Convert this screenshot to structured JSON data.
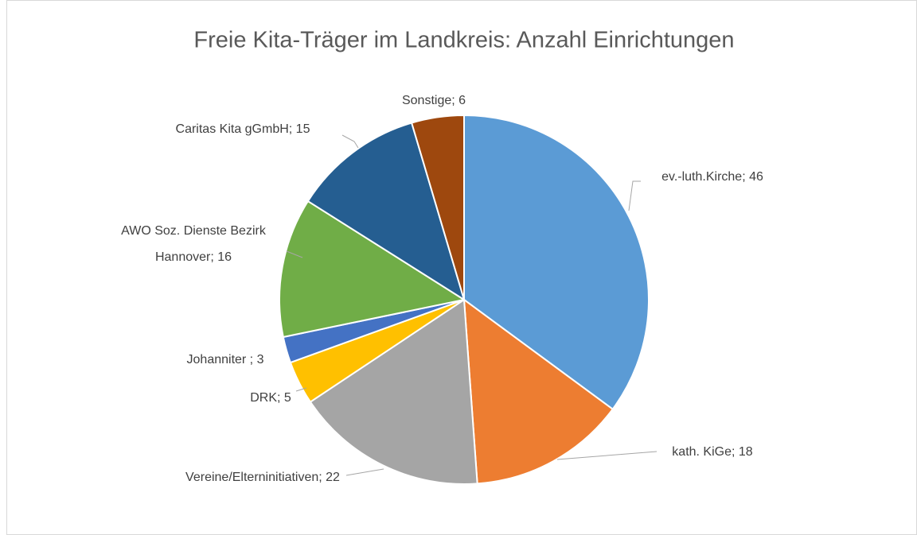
{
  "chart_data": {
    "type": "pie",
    "title": "Freie Kita-Träger im Landkreis: Anzahl Einrichtungen",
    "values": [
      46,
      18,
      22,
      5,
      3,
      16,
      15,
      6
    ],
    "value_labels": [
      "ev.-luth.Kirche; 46",
      "kath. KiGe; 18",
      "Vereine/Elterninitiativen; 22",
      "DRK; 5",
      "Johanniter ; 3",
      "AWO Soz. Dienste Bezirk Hannover; 16",
      "Caritas Kita gGmbH; 15",
      "Sonstige; 6"
    ],
    "colors": [
      "#5b9bd5",
      "#ed7d31",
      "#a5a5a5",
      "#ffc000",
      "#4472c4",
      "#70ad47",
      "#255e91",
      "#9e480e"
    ]
  }
}
